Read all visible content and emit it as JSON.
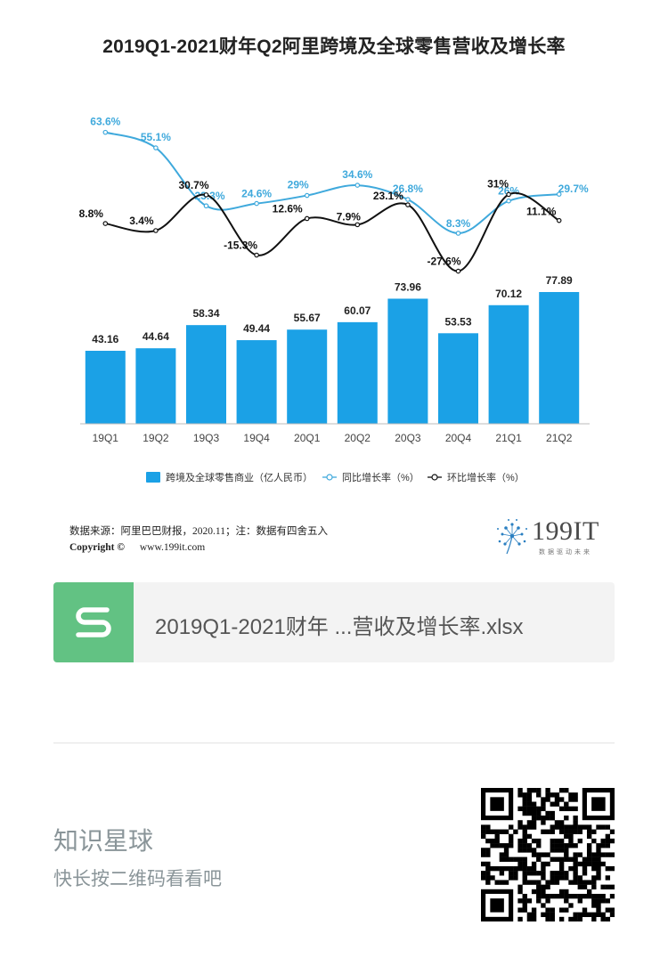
{
  "chart_data": {
    "type": "bar+line",
    "title": "2019Q1-2021财年Q2阿里跨境及全球零售营收及增长率",
    "categories": [
      "19Q1",
      "19Q2",
      "19Q3",
      "19Q4",
      "20Q1",
      "20Q2",
      "20Q3",
      "20Q4",
      "21Q1",
      "21Q2"
    ],
    "series": [
      {
        "name": "跨境及全球零售商业（亿人民币）",
        "kind": "bar",
        "color": "#1ba1e6",
        "values": [
          43.16,
          44.64,
          58.34,
          49.44,
          55.67,
          60.07,
          73.96,
          53.53,
          70.12,
          77.89
        ],
        "labels": [
          "43.16",
          "44.64",
          "58.34",
          "49.44",
          "55.67",
          "60.07",
          "73.96",
          "53.53",
          "70.12",
          "77.89"
        ]
      },
      {
        "name": "同比增长率（%）",
        "kind": "line",
        "color": "#3fa9dc",
        "values": [
          63.6,
          55.1,
          23.3,
          24.6,
          29,
          34.6,
          26.8,
          8.3,
          26,
          29.7
        ],
        "labels": [
          "63.6%",
          "55.1%",
          "23.3%",
          "24.6%",
          "29%",
          "34.6%",
          "26.8%",
          "8.3%",
          "26%",
          "29.7%"
        ]
      },
      {
        "name": "环比增长率（%）",
        "kind": "line",
        "color": "#111111",
        "values": [
          8.8,
          3.4,
          30.7,
          -15.3,
          12.6,
          7.9,
          23.1,
          -27.6,
          31,
          11.1
        ],
        "labels": [
          "8.8%",
          "3.4%",
          "30.7%",
          "-15.3%",
          "12.6%",
          "7.9%",
          "23.1%",
          "-27.6%",
          "31%",
          "11.1%"
        ]
      }
    ],
    "legend_position": "bottom",
    "grid": false
  },
  "footer": {
    "source": "数据来源：阿里巴巴财报，2020.11；注：数据有四舍五入",
    "copyright_label": "Copyright ©",
    "website": "www.199it.com",
    "logo_text": "199IT",
    "logo_sub": "数据驱动未来"
  },
  "file": {
    "icon": "spreadsheet-s-icon",
    "name": "2019Q1-2021财年 ...营收及增长率.xlsx"
  },
  "planet": {
    "title": "知识星球",
    "subtitle": "快长按二维码看看吧"
  },
  "colors": {
    "bar": "#1ba1e6",
    "yoy_line": "#3fa9dc",
    "qoq_line": "#111111",
    "file_icon": "#62c283"
  }
}
